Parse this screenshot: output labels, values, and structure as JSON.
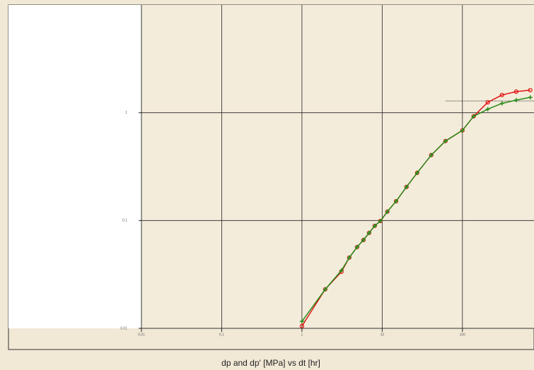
{
  "chart_data": {
    "type": "scatter",
    "title": "dp and dp'  [MPa] vs dt [hr]",
    "log_x": true,
    "log_y": true,
    "grid": true,
    "xlim": [
      0.01,
      780
    ],
    "ylim": [
      0.01,
      10
    ],
    "xticks": [
      0.01,
      0.1,
      1,
      10,
      100
    ],
    "yticks": [
      0.01,
      0.1,
      1
    ],
    "x": [
      1.0,
      1.95,
      3.11,
      3.89,
      4.87,
      5.84,
      6.87,
      8.08,
      9.51,
      11.6,
      14.9,
      20.1,
      27.3,
      40.9,
      61.5,
      100,
      138,
      207,
      311,
      468,
      701
    ],
    "series": [
      {
        "color": "#e01010",
        "marker": "circle",
        "values": [
          0.0105,
          0.023,
          0.0335,
          0.0453,
          0.0568,
          0.066,
          0.0768,
          0.0893,
          0.099,
          0.121,
          0.151,
          0.205,
          0.277,
          0.405,
          0.547,
          0.686,
          0.927,
          1.25,
          1.46,
          1.57,
          1.62
        ]
      },
      {
        "color": "#2a8a1a",
        "marker": "plus",
        "values": [
          0.0116,
          0.023,
          0.0345,
          0.0453,
          0.0568,
          0.066,
          0.0768,
          0.0893,
          0.099,
          0.121,
          0.151,
          0.205,
          0.277,
          0.405,
          0.547,
          0.686,
          0.927,
          1.08,
          1.22,
          1.31,
          1.39
        ]
      }
    ]
  }
}
